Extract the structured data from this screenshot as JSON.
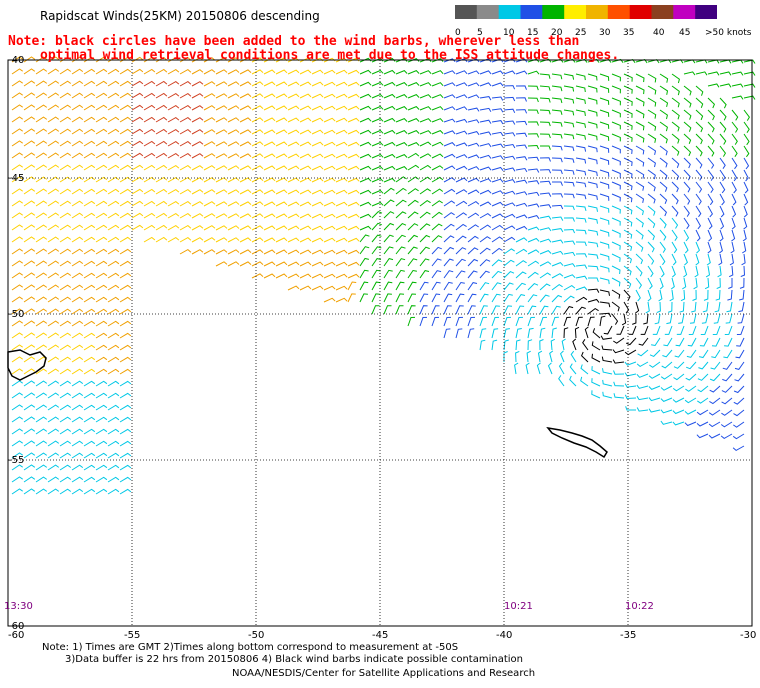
{
  "title": "Rapidscat Winds(25KM) 20150806 descending",
  "note_line1": "Note: black circles have been added to the wind barbs, wherever less than",
  "note_line2": "optimal wind retrieval conditions are met due to the ISS attitude changes.",
  "scale": {
    "labels": [
      "0",
      "5",
      "10",
      "15",
      "20",
      "25",
      "30",
      "35",
      "40",
      "45",
      ">50 knots"
    ],
    "colors": [
      "#555555",
      "#8a8a8a",
      "#00c8e6",
      "#2050e6",
      "#00b400",
      "#ffee00",
      "#f0b400",
      "#ff5000",
      "#e00000",
      "#8b4020",
      "#c000c0",
      "#400080"
    ]
  },
  "axes": {
    "lat_labels": [
      "-40",
      "-45",
      "-50",
      "-55",
      "-60"
    ],
    "lon_labels": [
      "-60",
      "-55",
      "-50",
      "-45",
      "-40",
      "-35",
      "-30"
    ]
  },
  "times": [
    "13:30",
    "10:21",
    "10:22"
  ],
  "footer_line1": "Note: 1) Times are GMT 2)Times along bottom correspond to measurement at -50S",
  "footer_line2": "3)Data buffer is 22 hrs from 20150806 4) Black wind barbs indicate possible contamination",
  "footer_line3": "NOAA/NESDIS/Center for Satellite Applications and Research",
  "colors": {
    "grid": "#000000",
    "note": "#ff0000",
    "time_label": "#800080",
    "barb_palette": {
      "calm": "#000000",
      "light": "#00c8e6",
      "moderate": "#2050e6",
      "fresh": "#00b400",
      "strong": "#ffd000",
      "gale": "#f0a000",
      "storm": "#d04020"
    }
  }
}
